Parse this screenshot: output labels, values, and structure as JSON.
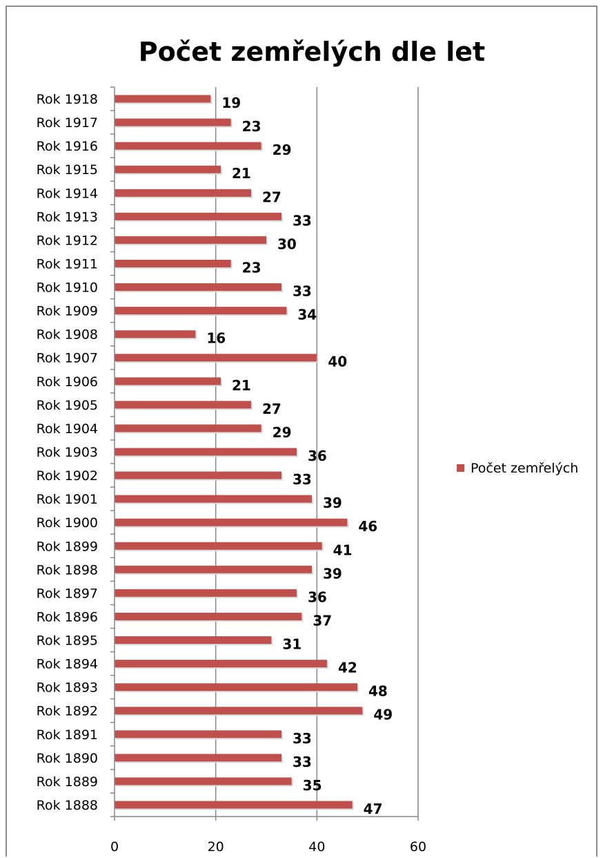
{
  "chart_data": {
    "type": "bar",
    "orientation": "horizontal",
    "title": "Počet zemřelých dle let",
    "categories": [
      "Rok 1918",
      "Rok 1917",
      "Rok 1916",
      "Rok 1915",
      "Rok 1914",
      "Rok 1913",
      "Rok 1912",
      "Rok 1911",
      "Rok 1910",
      "Rok 1909",
      "Rok 1908",
      "Rok 1907",
      "Rok 1906",
      "Rok 1905",
      "Rok 1904",
      "Rok 1903",
      "Rok 1902",
      "Rok 1901",
      "Rok 1900",
      "Rok 1899",
      "Rok 1898",
      "Rok 1897",
      "Rok 1896",
      "Rok 1895",
      "Rok 1894",
      "Rok 1893",
      "Rok 1892",
      "Rok 1891",
      "Rok 1890",
      "Rok 1889",
      "Rok 1888"
    ],
    "series": [
      {
        "name": "Počet zemřelých",
        "color": "#c0504d",
        "values": [
          19,
          23,
          29,
          21,
          27,
          33,
          30,
          23,
          33,
          34,
          16,
          40,
          21,
          27,
          29,
          36,
          33,
          39,
          46,
          41,
          39,
          36,
          37,
          31,
          42,
          48,
          49,
          33,
          33,
          35,
          47
        ]
      }
    ],
    "xlim": [
      0,
      60
    ],
    "x_ticks": [
      "0",
      "20",
      "40",
      "60"
    ],
    "grid": "vertical major gridlines",
    "legend_position": "right",
    "data_labels": true
  }
}
